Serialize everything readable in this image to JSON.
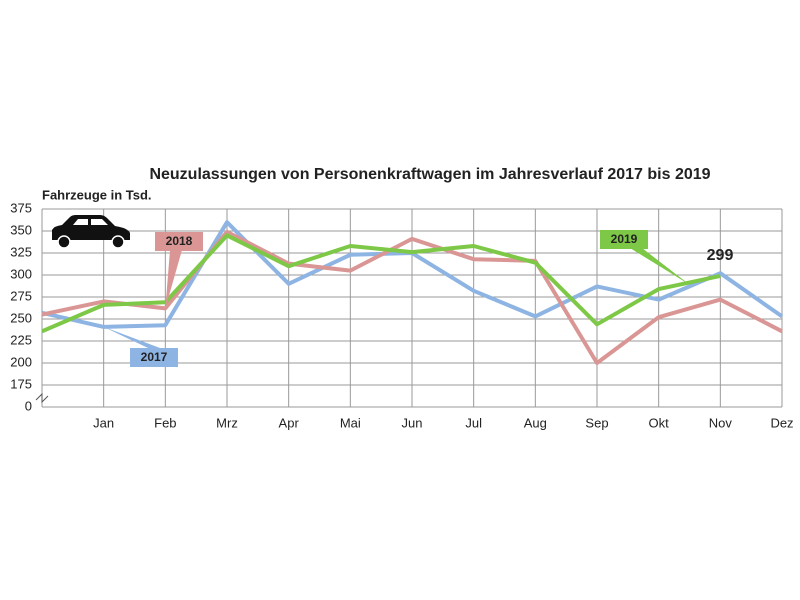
{
  "chart_data": {
    "type": "line",
    "title": "Neuzulassungen von Personenkraftwagen im Jahresverlauf 2017 bis 2019",
    "y_label": "Fahrzeuge in Tsd.",
    "categories": [
      null,
      "Jan",
      "Feb",
      "Mrz",
      "Apr",
      "Mai",
      "Jun",
      "Jul",
      "Aug",
      "Sep",
      "Okt",
      "Nov",
      "Dez"
    ],
    "series": [
      {
        "name": "2017",
        "color": "#8db4e2",
        "values": [
          257,
          241,
          243,
          360,
          290,
          323,
          325,
          282,
          253,
          287,
          272,
          302,
          253
        ]
      },
      {
        "name": "2018",
        "color": "#d99694",
        "values": [
          255,
          270,
          262,
          349,
          313,
          305,
          341,
          318,
          316,
          200,
          252,
          272,
          236
        ]
      },
      {
        "name": "2019",
        "color": "#7dc846",
        "values": [
          236,
          266,
          269,
          345,
          310,
          333,
          326,
          333,
          314,
          244,
          284,
          299,
          null
        ]
      }
    ],
    "ylim": [
      0,
      375
    ],
    "y_break": [
      0,
      175
    ],
    "yticks": [
      0,
      175,
      200,
      225,
      250,
      275,
      300,
      325,
      350,
      375
    ],
    "grid": true
  }
}
